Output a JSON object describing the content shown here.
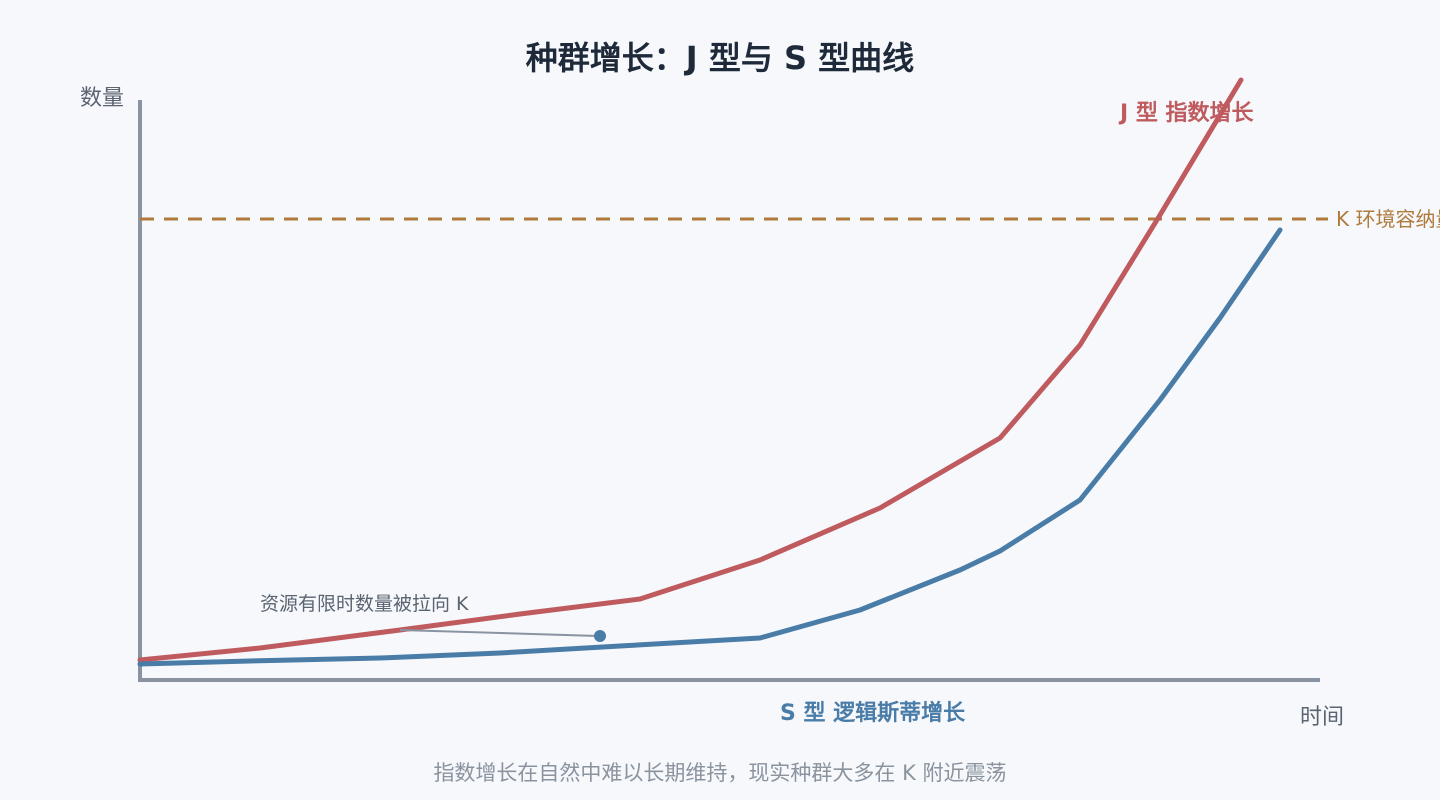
{
  "title": "种群增长：J 型与 S 型曲线",
  "axes": {
    "y_label": "数量",
    "x_label": "时间"
  },
  "curves": {
    "j": {
      "label": "J 型 指数增长",
      "color": "#bf5b5e"
    },
    "s": {
      "label": "S 型 逻辑斯蒂增长",
      "color": "#4a7ca8"
    }
  },
  "capacity": {
    "label": "K 环境容纳量",
    "color": "#b07a3a"
  },
  "annotation": {
    "text": "资源有限时数量被拉向 K",
    "dot_color": "#4a7ca8"
  },
  "footnote": "指数增长在自然中难以长期维持，现实种群大多在 K 附近震荡",
  "colors": {
    "axis": "#8a93a2",
    "background": "#f6f8fc"
  }
}
